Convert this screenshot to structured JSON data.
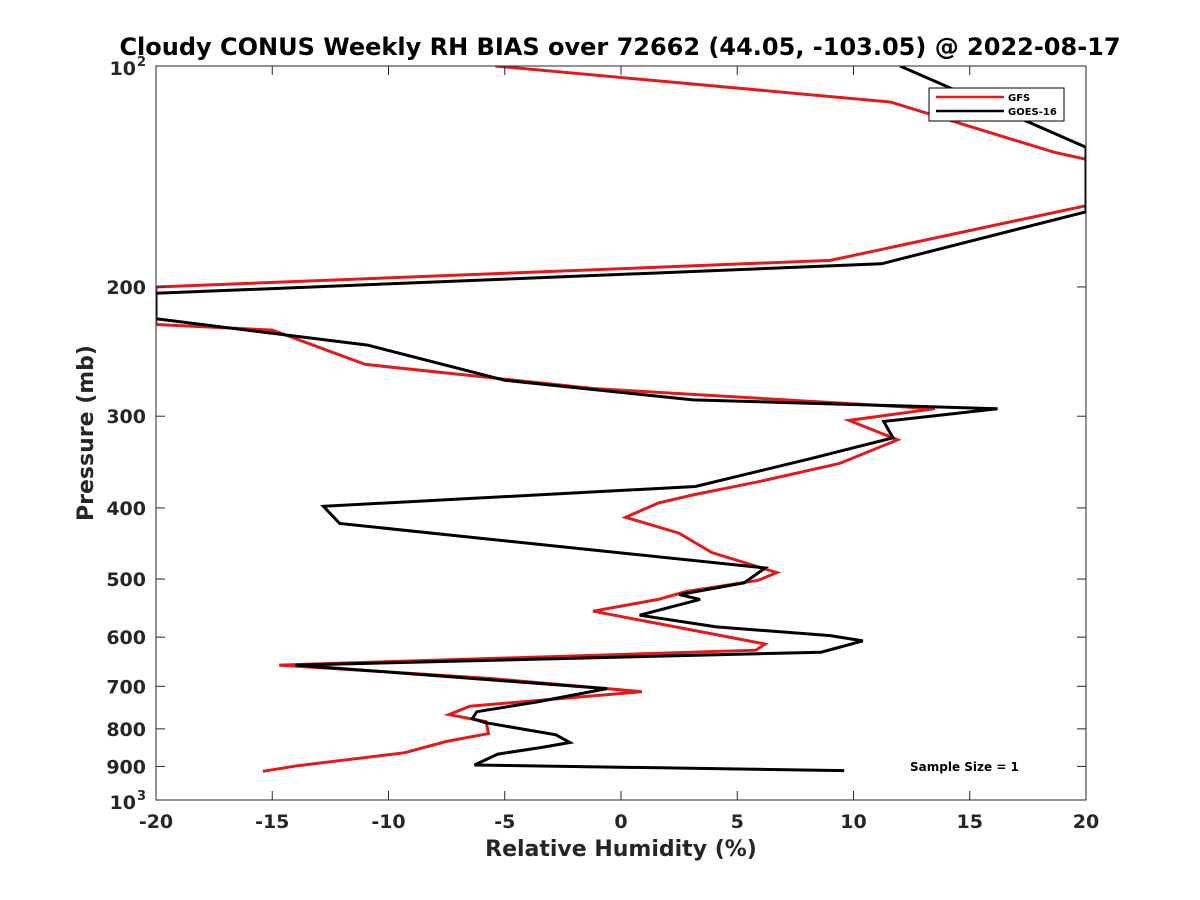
{
  "chart_data": {
    "type": "line",
    "title": "Cloudy CONUS Weekly RH BIAS over 72662 (44.05, -103.05) @ 2022-08-17",
    "xlabel": "Relative Humidity (%)",
    "ylabel": "Pressure (mb)",
    "xlim": [
      -20,
      20
    ],
    "ylim": [
      100,
      1000
    ],
    "yscale": "log",
    "y_reversed": true,
    "grid": false,
    "legend_position": "top-right",
    "x_ticks": [
      -20,
      -15,
      -10,
      -5,
      0,
      5,
      10,
      15,
      20
    ],
    "x_tick_labels": [
      "-20",
      "-15",
      "-10",
      "-5",
      "0",
      "5",
      "10",
      "15",
      "20"
    ],
    "y_ticks": [
      {
        "value": 100,
        "label": "10",
        "sup": "2"
      },
      {
        "value": 200,
        "label": "200",
        "sup": ""
      },
      {
        "value": 300,
        "label": "300",
        "sup": ""
      },
      {
        "value": 400,
        "label": "400",
        "sup": ""
      },
      {
        "value": 500,
        "label": "500",
        "sup": ""
      },
      {
        "value": 600,
        "label": "600",
        "sup": ""
      },
      {
        "value": 700,
        "label": "700",
        "sup": ""
      },
      {
        "value": 800,
        "label": "800",
        "sup": ""
      },
      {
        "value": 900,
        "label": "900",
        "sup": ""
      },
      {
        "value": 1000,
        "label": "10",
        "sup": "3"
      }
    ],
    "annotation": "Sample Size = 1",
    "series": [
      {
        "name": "GFS",
        "color": "#e31a1c",
        "points": [
          [
            -5.4,
            100
          ],
          [
            11.6,
            112
          ],
          [
            18.6,
            131
          ],
          [
            20.0,
            134
          ],
          [
            20.0,
            155
          ],
          [
            9.0,
            184
          ],
          [
            -20.0,
            200
          ],
          [
            -20.0,
            225
          ],
          [
            -15.0,
            229
          ],
          [
            -11.0,
            255
          ],
          [
            -1.2,
            275
          ],
          [
            13.5,
            293
          ],
          [
            9.8,
            304
          ],
          [
            11.9,
            323
          ],
          [
            9.4,
            348
          ],
          [
            6.0,
            368
          ],
          [
            3.1,
            384
          ],
          [
            1.6,
            394
          ],
          [
            0.2,
            412
          ],
          [
            2.5,
            433
          ],
          [
            3.9,
            460
          ],
          [
            6.7,
            490
          ],
          [
            5.9,
            502
          ],
          [
            2.8,
            520
          ],
          [
            1.6,
            533
          ],
          [
            -1.2,
            553
          ],
          [
            6.2,
            613
          ],
          [
            5.8,
            625
          ],
          [
            -14.7,
            655
          ],
          [
            -5.6,
            683
          ],
          [
            0.9,
            712
          ],
          [
            -6.5,
            745
          ],
          [
            -7.4,
            765
          ],
          [
            -5.8,
            782
          ],
          [
            -5.7,
            812
          ],
          [
            -7.5,
            832
          ],
          [
            -9.3,
            862
          ],
          [
            -13.9,
            898
          ],
          [
            -15.4,
            914
          ]
        ]
      },
      {
        "name": "GOES-16",
        "color": "#000000",
        "points": [
          [
            12.0,
            100
          ],
          [
            20.0,
            129
          ],
          [
            20.0,
            158
          ],
          [
            11.2,
            186
          ],
          [
            -20.0,
            204
          ],
          [
            -20.0,
            221
          ],
          [
            -10.9,
            240
          ],
          [
            -5.0,
            268
          ],
          [
            3.1,
            285
          ],
          [
            16.2,
            293
          ],
          [
            11.3,
            305
          ],
          [
            11.7,
            321
          ],
          [
            8.1,
            343
          ],
          [
            3.2,
            374
          ],
          [
            -12.8,
            398
          ],
          [
            -12.1,
            420
          ],
          [
            6.2,
            483
          ],
          [
            5.3,
            506
          ],
          [
            2.5,
            525
          ],
          [
            3.4,
            533
          ],
          [
            0.8,
            560
          ],
          [
            4.1,
            581
          ],
          [
            9.0,
            597
          ],
          [
            10.4,
            607
          ],
          [
            8.6,
            629
          ],
          [
            -14.0,
            655
          ],
          [
            -0.6,
            705
          ],
          [
            -3.6,
            735
          ],
          [
            -6.2,
            758
          ],
          [
            -6.4,
            775
          ],
          [
            -5.8,
            785
          ],
          [
            -2.8,
            815
          ],
          [
            -2.2,
            835
          ],
          [
            -3.4,
            848
          ],
          [
            -5.3,
            866
          ],
          [
            -6.3,
            896
          ],
          [
            9.6,
            912
          ]
        ]
      }
    ]
  }
}
